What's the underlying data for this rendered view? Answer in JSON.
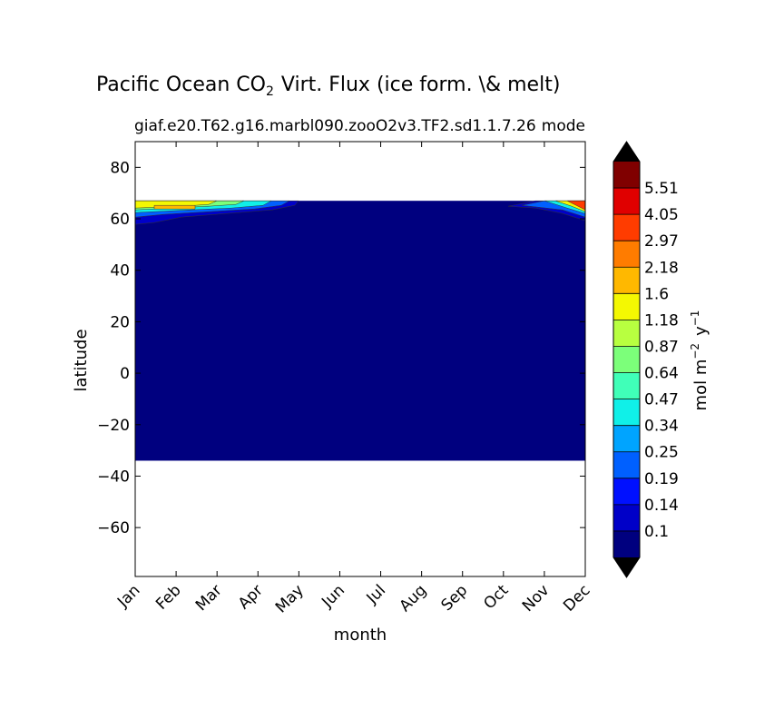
{
  "chart_data": {
    "type": "heatmap",
    "title": "Pacific Ocean CO",
    "title_sub": "2",
    "title_rest": "Virt. Flux (ice form. \\& melt)",
    "subtitle_left": "giaf.e20.T62.g16.marbl090.zooO2v3.TF2.sd1.1.7.26",
    "subtitle_right": "mode",
    "xlabel": "month",
    "ylabel": "latitude",
    "x_categories": [
      "Jan",
      "Feb",
      "Mar",
      "Apr",
      "May",
      "Jun",
      "Jul",
      "Aug",
      "Sep",
      "Oct",
      "Nov",
      "Dec"
    ],
    "y_ticks": [
      "80",
      "60",
      "40",
      "20",
      "0",
      "−20",
      "−40",
      "−60"
    ],
    "y_tick_values": [
      80,
      60,
      40,
      20,
      0,
      -20,
      -40,
      -60
    ],
    "ylim": [
      -79,
      90
    ],
    "data_lat_range": [
      -34,
      67
    ],
    "colorbar": {
      "label_main": "mol m",
      "label_exp1": "−2",
      "label_mid": "y",
      "label_exp2": "−1",
      "levels": [
        "0.1",
        "0.14",
        "0.19",
        "0.25",
        "0.34",
        "0.47",
        "0.64",
        "0.87",
        "1.18",
        "1.6",
        "2.18",
        "2.97",
        "4.05",
        "5.51"
      ],
      "colors": [
        "#00007f",
        "#0000c8",
        "#0010ff",
        "#0060ff",
        "#00a4ff",
        "#10f0e8",
        "#40ffb8",
        "#7cff7a",
        "#b8ff40",
        "#f4f802",
        "#ffb800",
        "#ff7c00",
        "#ff3c00",
        "#e00000",
        "#800000"
      ],
      "extend_low_color": "#000000",
      "extend_high_color": "#000000"
    },
    "background_color": "#00007f"
  }
}
